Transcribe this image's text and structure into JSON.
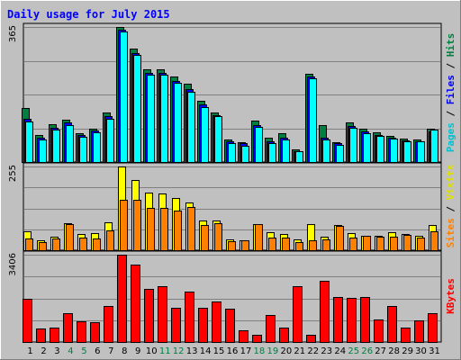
{
  "chart_data": {
    "title": "Daily usage for July 2015",
    "type": "bar",
    "categories": [
      "1",
      "2",
      "3",
      "4",
      "5",
      "6",
      "7",
      "8",
      "9",
      "10",
      "11",
      "12",
      "13",
      "14",
      "15",
      "16",
      "17",
      "18",
      "19",
      "20",
      "21",
      "22",
      "23",
      "24",
      "25",
      "26",
      "27",
      "28",
      "29",
      "30",
      "31"
    ],
    "weekend_days": [
      "4",
      "5",
      "11",
      "12",
      "18",
      "19",
      "25",
      "26"
    ],
    "panels": [
      {
        "name": "hits-files-pages",
        "ymax": 365,
        "ymax_label": "365",
        "ylim": [
          0,
          365
        ],
        "grid": true,
        "series": [
          {
            "name": "Hits",
            "color": "#008040",
            "values": [
              145,
              74,
              102,
              115,
              78,
              90,
              134,
              365,
              307,
              250,
              250,
              232,
              212,
              166,
              135,
              60,
              54,
              113,
              65,
              78,
              34,
              238,
              100,
              54,
              106,
              90,
              80,
              70,
              63,
              62,
              89
            ]
          },
          {
            "name": "Files",
            "color": "#0000ff",
            "values": [
              116,
              66,
              93,
              106,
              72,
              85,
              124,
              357,
              295,
              240,
              240,
              220,
              198,
              155,
              127,
              55,
              50,
              100,
              55,
              66,
              30,
              230,
              65,
              50,
              98,
              83,
              74,
              65,
              58,
              57,
              82
            ]
          },
          {
            "name": "Pages",
            "color": "#00ffff",
            "values": [
              110,
              62,
              88,
              100,
              68,
              80,
              118,
              353,
              290,
              235,
              235,
              215,
              190,
              148,
              123,
              50,
              45,
              95,
              50,
              62,
              28,
              226,
              60,
              46,
              93,
              78,
              70,
              63,
              56,
              55,
              88
            ]
          }
        ]
      },
      {
        "name": "visits-sites",
        "ymax": 255,
        "ymax_label": "255",
        "ylim": [
          0,
          255
        ],
        "grid": true,
        "series": [
          {
            "name": "Visits",
            "color": "#ffff00",
            "values": [
              57,
              30,
              40,
              82,
              50,
              53,
              85,
              255,
              215,
              175,
              172,
              158,
              146,
              91,
              90,
              32,
              29,
              79,
              55,
              48,
              33,
              79,
              40,
              78,
              52,
              45,
              45,
              55,
              50,
              43,
              78
            ]
          },
          {
            "name": "Sites",
            "color": "#ff8000",
            "values": [
              35,
              25,
              35,
              79,
              38,
              36,
              59,
              154,
              154,
              130,
              128,
              121,
              131,
              77,
              82,
              27,
              29,
              79,
              38,
              38,
              26,
              31,
              33,
              74,
              38,
              44,
              42,
              41,
              47,
              39,
              57
            ]
          }
        ]
      },
      {
        "name": "kbytes",
        "ymax": 3406,
        "ymax_label": "3406",
        "ylim": [
          0,
          3406
        ],
        "grid": true,
        "series": [
          {
            "name": "KBytes",
            "color": "#ff0000",
            "values": [
              1670,
              537,
              567,
              1110,
              810,
              760,
              1420,
              3406,
              3020,
              2070,
              2180,
              1350,
              1970,
              1322,
              1570,
              1300,
              450,
              272,
              1050,
              577,
              2180,
              270,
              2380,
              1740,
              1720,
              1740,
              890,
              1410,
              550,
              860,
              1110
            ]
          }
        ]
      }
    ],
    "right_labels": [
      [
        {
          "text": "Pages",
          "color": "#00c0d0"
        },
        {
          "text": " / ",
          "color": "#000000"
        },
        {
          "text": "Files",
          "color": "#0000ff"
        },
        {
          "text": " / ",
          "color": "#000000"
        },
        {
          "text": "Hits",
          "color": "#008040"
        }
      ],
      [
        {
          "text": "Sites",
          "color": "#ff8000"
        },
        {
          "text": " / ",
          "color": "#000000"
        },
        {
          "text": "Visits",
          "color": "#e0e000"
        }
      ],
      [
        {
          "text": "KBytes",
          "color": "#ff0000"
        }
      ]
    ],
    "colors": {
      "background": "#c0c0c0",
      "title": "#0000ff",
      "weekday_label": "#000000",
      "weekend_label": "#008040",
      "grid": "#808080"
    }
  }
}
